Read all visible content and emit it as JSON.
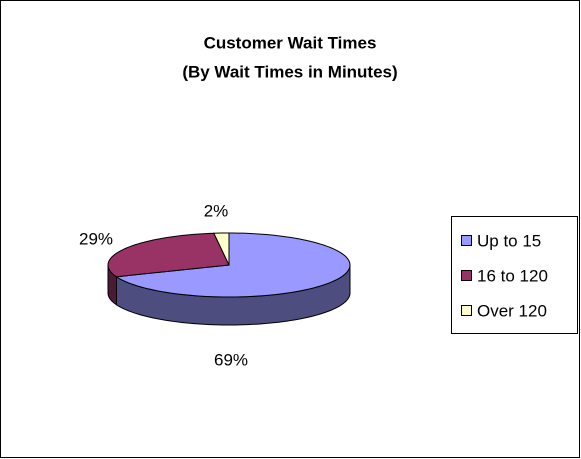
{
  "chart_data": {
    "type": "pie3d",
    "title": "Customer Wait Times",
    "subtitle": "(By Wait Times in Minutes)",
    "categories": [
      "Up to 15",
      "16 to 120",
      "Over 120"
    ],
    "values": [
      69,
      29,
      2
    ],
    "value_labels": [
      "69%",
      "29%",
      "2%"
    ],
    "colors": [
      "#9999ff",
      "#993366",
      "#ffffcc"
    ],
    "legend": "right"
  }
}
